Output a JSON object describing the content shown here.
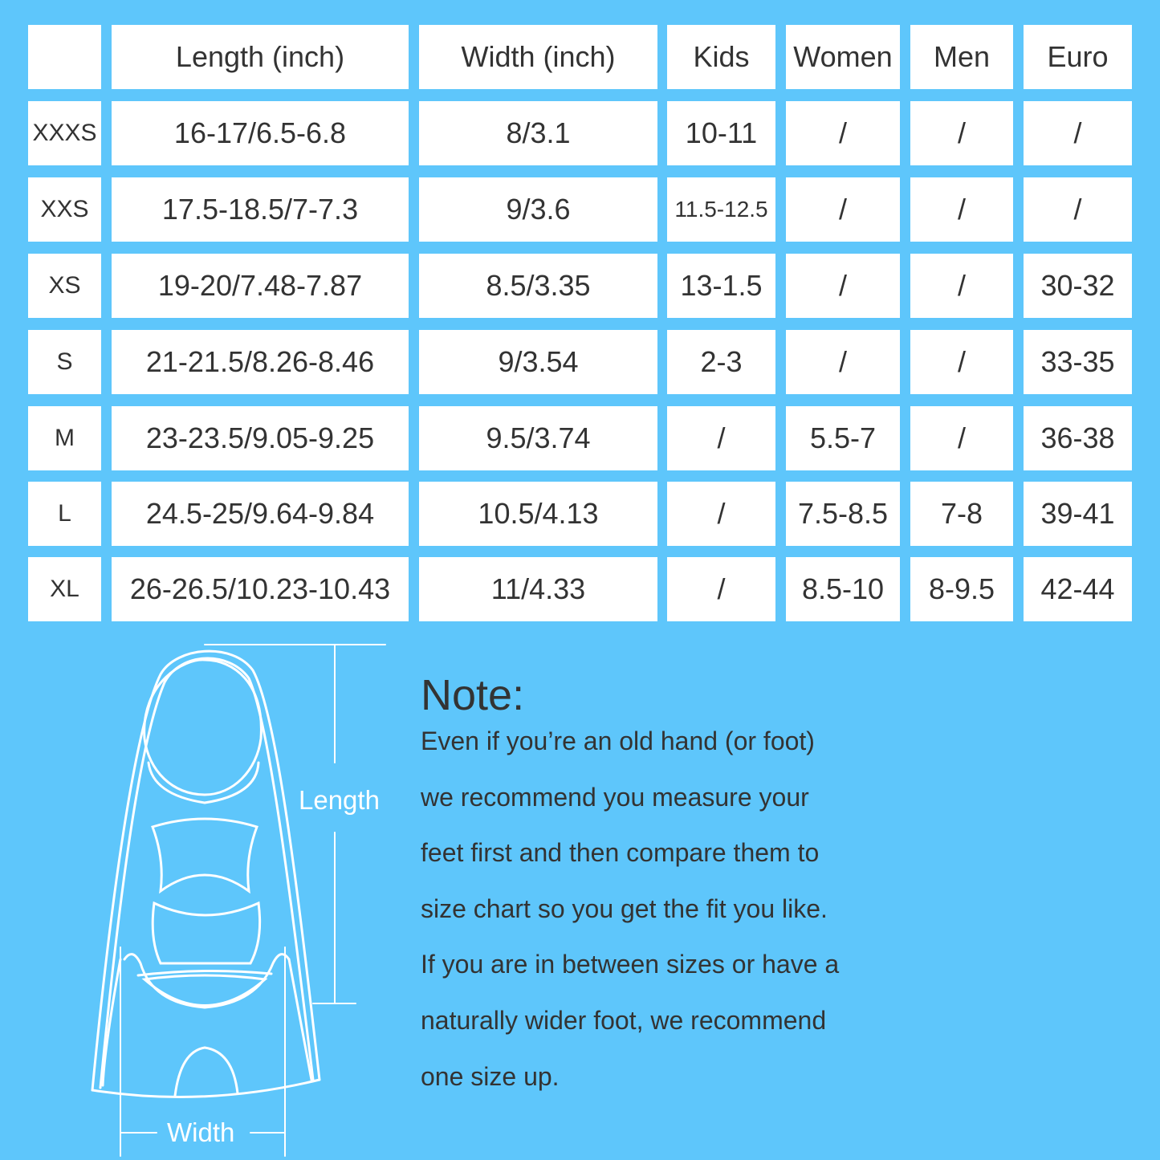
{
  "colors": {
    "background": "#5ec6fb",
    "cell": "#ffffff",
    "text": "#333333",
    "drawing": "#ffffff"
  },
  "table": {
    "headers": [
      "",
      "Length (inch)",
      "Width (inch)",
      "Kids",
      "Women",
      "Men",
      "Euro"
    ],
    "rows": [
      [
        "XXXS",
        "16-17/6.5-6.8",
        "8/3.1",
        "10-11",
        "/",
        "/",
        "/"
      ],
      [
        "XXS",
        "17.5-18.5/7-7.3",
        "9/3.6",
        "11.5-12.5",
        "/",
        "/",
        "/"
      ],
      [
        "XS",
        "19-20/7.48-7.87",
        "8.5/3.35",
        "13-1.5",
        "/",
        "/",
        "30-32"
      ],
      [
        "S",
        "21-21.5/8.26-8.46",
        "9/3.54",
        "2-3",
        "/",
        "/",
        "33-35"
      ],
      [
        "M",
        "23-23.5/9.05-9.25",
        "9.5/3.74",
        "/",
        "5.5-7",
        "/",
        "36-38"
      ],
      [
        "L",
        "24.5-25/9.64-9.84",
        "10.5/4.13",
        "/",
        "7.5-8.5",
        "7-8",
        "39-41"
      ],
      [
        "XL",
        "26-26.5/10.23-10.43",
        "11/4.33",
        "/",
        "8.5-10",
        "8-9.5",
        "42-44"
      ]
    ]
  },
  "diagram": {
    "length_label": "Length",
    "width_label": "Width"
  },
  "note": {
    "title": "Note:",
    "lines": [
      "Even if you’re an old hand (or foot)",
      "we recommend you measure your",
      "feet first and then compare them to",
      "size chart so you get the fit you like.",
      "If you are in between sizes or have a",
      "naturally wider foot, we recommend",
      "one size up."
    ]
  }
}
